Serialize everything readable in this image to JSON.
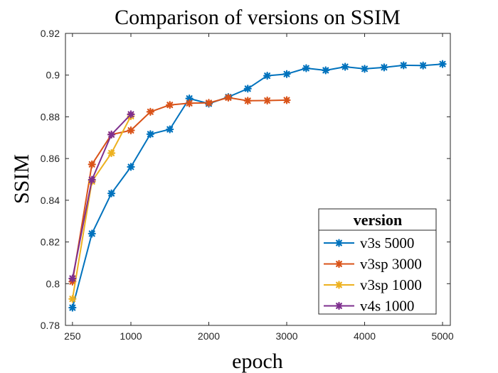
{
  "chart_data": {
    "type": "line",
    "title": "Comparison of versions on SSIM",
    "xlabel": "epoch",
    "ylabel": "SSIM",
    "xlim": [
      160,
      5100
    ],
    "ylim": [
      0.78,
      0.92
    ],
    "xticks": [
      250,
      1000,
      2000,
      3000,
      4000,
      5000
    ],
    "xtick_labels": [
      "250",
      "1000",
      "2000",
      "3000",
      "4000",
      "5000"
    ],
    "yticks": [
      0.78,
      0.8,
      0.82,
      0.84,
      0.86,
      0.88,
      0.9,
      0.92
    ],
    "ytick_labels": [
      "0.78",
      "0.8",
      "0.82",
      "0.84",
      "0.86",
      "0.88",
      "0.9",
      "0.92"
    ],
    "grid": false,
    "legend": {
      "title": "version",
      "position": "bottom-right"
    },
    "series": [
      {
        "name": "v3s 5000",
        "color": "#0072BD",
        "x": [
          250,
          500,
          750,
          1000,
          1250,
          1500,
          1750,
          2000,
          2250,
          2500,
          2750,
          3000,
          3250,
          3500,
          3750,
          4000,
          4250,
          4500,
          4750,
          5000
        ],
        "y": [
          0.7885,
          0.824,
          0.8433,
          0.856,
          0.8717,
          0.874,
          0.8888,
          0.8863,
          0.8895,
          0.8935,
          0.8997,
          0.9005,
          0.9033,
          0.9023,
          0.904,
          0.903,
          0.9037,
          0.9047,
          0.9046,
          0.9053
        ]
      },
      {
        "name": "v3sp 3000",
        "color": "#D95319",
        "x": [
          250,
          500,
          750,
          1000,
          1250,
          1500,
          1750,
          2000,
          2250,
          2500,
          2750,
          3000
        ],
        "y": [
          0.801,
          0.8572,
          0.8715,
          0.8735,
          0.8824,
          0.8857,
          0.8865,
          0.8867,
          0.8892,
          0.8877,
          0.8878,
          0.888
        ]
      },
      {
        "name": "v3sp 1000",
        "color": "#EDB120",
        "x": [
          250,
          500,
          750,
          1000
        ],
        "y": [
          0.7927,
          0.849,
          0.8626,
          0.8803
        ]
      },
      {
        "name": "v4s 1000",
        "color": "#7E2F8E",
        "x": [
          250,
          500,
          750,
          1000
        ],
        "y": [
          0.8025,
          0.8498,
          0.8715,
          0.8812
        ]
      }
    ]
  }
}
